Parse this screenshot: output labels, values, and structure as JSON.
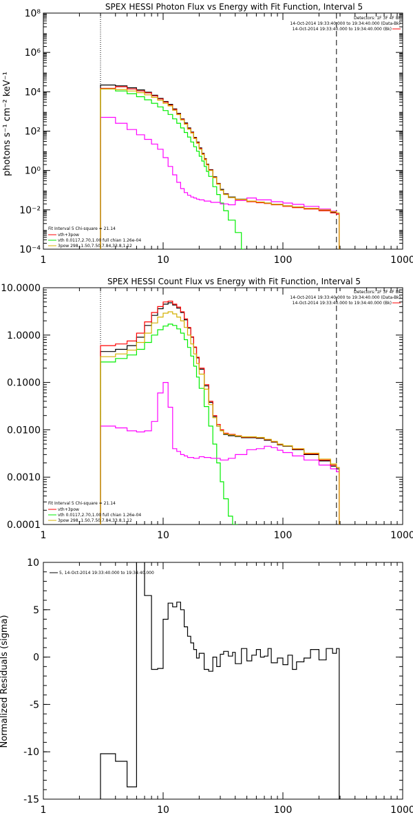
{
  "chart_data": [
    {
      "type": "line",
      "title": "SPEX HESSI Photon Flux vs Energy with Fit Function, Interval 5",
      "ylabel": "photons s⁻¹ cm⁻² keV⁻¹",
      "xlabel": "",
      "xscale": "log",
      "yscale": "log",
      "xlim": [
        1,
        1000
      ],
      "ylim": [
        0.0001,
        100000000
      ],
      "x_ticks": [
        "1",
        "10",
        "100",
        "1000"
      ],
      "y_ticks": [
        "10⁻⁴",
        "10⁻²",
        "10⁰",
        "10²",
        "10⁴",
        "10⁶",
        "10⁸"
      ],
      "ref_lines": {
        "dotted_x": 3.0,
        "dashed_x": 280
      },
      "legend_top": [
        "Detectors: 1F 3F 4F 8F",
        "14-Oct-2014 19:33:40.000 to 19:34:40.000 (Data-Bk)",
        "14-Oct-2014 19:33:40.000 to 19:34:40.000 (Bk)"
      ],
      "legend_bottom": [
        "Fit Interval 5   Chi-square = 21.14",
        "vth+3pow",
        "vth 0.0117,2.70,1.00  full chian 1.26e-04",
        "3pow 298.,1.50,7.50,7.84,33.8,1.12"
      ],
      "series": [
        {
          "name": "vth+3pow",
          "color": "#000000",
          "x": [
            3.0,
            4.0,
            5.0,
            6.0,
            7.0,
            8.0,
            9.0,
            10.0,
            11.0,
            12.0,
            13.0,
            14.0,
            15.0,
            16.0,
            17.0,
            18.0,
            19.0,
            20.0,
            21.0,
            22.0,
            23.0,
            24.0,
            26.0,
            28.0,
            30.0,
            32.0,
            35.0,
            40.0,
            50.0,
            60.0,
            70.0,
            80.0,
            100.0,
            120.0,
            150.0,
            200.0,
            250.0,
            280.0
          ],
          "y": [
            22000,
            20000,
            16000,
            12500,
            9500,
            6700,
            4600,
            3200,
            2300,
            1350,
            800,
            420,
            260,
            145,
            90,
            48,
            28,
            14,
            7.5,
            4.0,
            2.1,
            1.1,
            0.48,
            0.22,
            0.11,
            0.065,
            0.045,
            0.035,
            0.028,
            0.024,
            0.022,
            0.019,
            0.016,
            0.014,
            0.012,
            0.0095,
            0.0075,
            0.0065
          ]
        },
        {
          "name": "vth",
          "color": "#00ee00",
          "x": [
            3.0,
            4.0,
            5.0,
            6.0,
            7.0,
            8.0,
            9.0,
            10.0,
            11.0,
            12.0,
            13.0,
            14.0,
            15.0,
            16.0,
            17.0,
            18.0,
            19.0,
            20.0,
            21.0,
            22.0,
            23.0,
            24.0,
            26.0,
            28.0,
            30.0,
            32.0,
            35.0,
            40.0,
            45.0
          ],
          "y": [
            14000,
            11000,
            8000,
            5600,
            3900,
            2600,
            1700,
            1100,
            700,
            420,
            250,
            145,
            85,
            50,
            28,
            16,
            9.5,
            5.3,
            3.0,
            1.6,
            0.9,
            0.5,
            0.15,
            0.06,
            0.022,
            0.009,
            0.003,
            0.0007,
            0.0001
          ]
        },
        {
          "name": "3pow",
          "color": "#ff00ff",
          "x": [
            3.0,
            4.0,
            5.0,
            6.0,
            7.0,
            8.0,
            9.0,
            10.0,
            11.0,
            12.0,
            13.0,
            14.0,
            15.0,
            16.0,
            17.0,
            18.0,
            19.0,
            20.0,
            22.0,
            25.0,
            30.0,
            35.0,
            40.0,
            50.0,
            60.0,
            80.0,
            100.0,
            120.0,
            150.0,
            200.0,
            250.0,
            280.0
          ],
          "y": [
            500,
            250,
            120,
            65,
            38,
            22,
            12,
            4.5,
            1.6,
            0.6,
            0.25,
            0.12,
            0.075,
            0.055,
            0.045,
            0.04,
            0.035,
            0.032,
            0.028,
            0.024,
            0.02,
            0.018,
            0.03,
            0.04,
            0.032,
            0.026,
            0.022,
            0.019,
            0.015,
            0.011,
            0.0085,
            0.0065
          ]
        },
        {
          "name": "Data-Bk",
          "color": "#ff0000",
          "x": [
            3.0,
            4.0,
            5.0,
            6.0,
            7.0,
            8.0,
            9.0,
            10.0,
            11.0,
            12.0,
            13.0,
            14.0,
            15.0,
            16.0,
            17.0,
            18.0,
            19.0,
            20.0,
            21.0,
            22.0,
            23.0,
            24.0,
            26.0,
            28.0,
            30.0,
            32.0,
            35.0,
            40.0,
            50.0,
            60.0,
            70.0,
            80.0,
            100.0,
            120.0,
            150.0,
            200.0,
            250.0,
            280.0
          ],
          "y": [
            15000,
            18000,
            14000,
            11000,
            8800,
            6200,
            4300,
            3000,
            2100,
            1250,
            740,
            400,
            240,
            135,
            85,
            45,
            26,
            13,
            7.0,
            3.8,
            2.0,
            1.05,
            0.45,
            0.21,
            0.1,
            0.062,
            0.042,
            0.033,
            0.026,
            0.023,
            0.021,
            0.018,
            0.015,
            0.013,
            0.011,
            0.009,
            0.007,
            0.006
          ]
        },
        {
          "name": "Bk",
          "color": "#d4b000",
          "x": [
            3.0,
            4.0,
            5.0,
            6.0,
            7.0,
            8.0,
            9.0,
            10.0,
            11.0,
            12.0,
            13.0,
            14.0,
            15.0,
            16.0,
            17.0,
            18.0,
            19.0,
            20.0,
            21.0,
            22.0,
            23.0,
            24.0,
            26.0,
            28.0,
            30.0,
            32.0,
            35.0,
            40.0,
            50.0,
            60.0,
            70.0,
            80.0,
            100.0,
            120.0,
            150.0,
            200.0,
            250.0,
            280.0
          ],
          "y": [
            14000,
            13000,
            11000,
            9000,
            7000,
            5200,
            3700,
            2600,
            1900,
            1150,
            690,
            370,
            225,
            125,
            80,
            42,
            24,
            12,
            6.5,
            3.5,
            1.9,
            1.0,
            0.43,
            0.2,
            0.098,
            0.06,
            0.042,
            0.034,
            0.028,
            0.025,
            0.022,
            0.019,
            0.016,
            0.014,
            0.012,
            0.01,
            0.008,
            0.007
          ]
        }
      ]
    },
    {
      "type": "line",
      "title": "SPEX HESSI Count Flux vs Energy with Fit Function, Interval 5",
      "ylabel": "",
      "xlabel": "",
      "xscale": "log",
      "yscale": "log",
      "xlim": [
        1,
        1000
      ],
      "ylim": [
        0.0001,
        10
      ],
      "x_ticks": [
        "1",
        "10",
        "100",
        "1000"
      ],
      "y_ticks": [
        "0.0001",
        "0.0010",
        "0.0100",
        "0.1000",
        "1.0000",
        "10.0000"
      ],
      "ref_lines": {
        "dotted_x": 3.0,
        "dashed_x": 280
      },
      "legend_top": [
        "Detectors: 1F 3F 4F 8F",
        "14-Oct-2014 19:33:40.000 to 19:34:40.000 (Data-Bk)",
        "14-Oct-2014 19:33:40.000 to 19:34:40.000 (Bk)"
      ],
      "legend_bottom": [
        "Fit Interval 5   Chi-square = 21.14",
        "vth+3pow",
        "vth 0.0117,2.70,1.00  full chian 1.26e-04",
        "3pow 298.,1.50,7.50,7.84,33.8,1.12"
      ],
      "series": [
        {
          "name": "vth+3pow",
          "color": "#000000",
          "x": [
            3.0,
            4.0,
            5.0,
            6.0,
            7.0,
            8.0,
            9.0,
            10.0,
            11.0,
            12.0,
            13.0,
            14.0,
            15.0,
            16.0,
            17.0,
            18.0,
            19.0,
            20.0,
            22.0,
            24.0,
            26.0,
            28.0,
            30.0,
            32.0,
            35.0,
            40.0,
            45.0,
            50.0,
            60.0,
            70.0,
            80.0,
            90.0,
            100.0,
            120.0,
            150.0,
            200.0,
            250.0,
            280.0
          ],
          "y": [
            0.45,
            0.5,
            0.6,
            0.9,
            1.6,
            2.6,
            3.6,
            4.5,
            4.8,
            4.3,
            3.7,
            3.0,
            2.1,
            1.4,
            0.9,
            0.55,
            0.33,
            0.19,
            0.085,
            0.038,
            0.019,
            0.012,
            0.0095,
            0.008,
            0.0075,
            0.0072,
            0.0068,
            0.0068,
            0.0066,
            0.006,
            0.0055,
            0.0048,
            0.0045,
            0.0038,
            0.003,
            0.0022,
            0.0017,
            0.0015
          ]
        },
        {
          "name": "vth",
          "color": "#00ee00",
          "x": [
            3.0,
            4.0,
            5.0,
            6.0,
            7.0,
            8.0,
            9.0,
            10.0,
            11.0,
            12.0,
            13.0,
            14.0,
            15.0,
            16.0,
            17.0,
            18.0,
            19.0,
            20.0,
            22.0,
            24.0,
            26.0,
            28.0,
            30.0,
            32.0,
            35.0,
            38.0,
            40.0
          ],
          "y": [
            0.27,
            0.32,
            0.38,
            0.5,
            0.7,
            1.0,
            1.3,
            1.55,
            1.7,
            1.6,
            1.35,
            1.1,
            0.8,
            0.55,
            0.36,
            0.22,
            0.13,
            0.075,
            0.031,
            0.012,
            0.005,
            0.002,
            0.0008,
            0.00035,
            0.00015,
            0.0001,
            0.0001
          ]
        },
        {
          "name": "3pow",
          "color": "#ff00ff",
          "x": [
            3.0,
            4.0,
            5.0,
            6.0,
            7.0,
            8.0,
            9.0,
            10.0,
            11.0,
            12.0,
            13.0,
            14.0,
            15.0,
            16.0,
            18.0,
            20.0,
            22.0,
            25.0,
            30.0,
            35.0,
            40.0,
            50.0,
            60.0,
            70.0,
            80.0,
            90.0,
            100.0,
            120.0,
            150.0,
            200.0,
            250.0,
            280.0
          ],
          "y": [
            0.012,
            0.011,
            0.0095,
            0.009,
            0.0095,
            0.015,
            0.06,
            0.1,
            0.03,
            0.004,
            0.0035,
            0.003,
            0.0028,
            0.0026,
            0.0025,
            0.0027,
            0.0026,
            0.0025,
            0.0023,
            0.0025,
            0.003,
            0.0038,
            0.004,
            0.0045,
            0.0042,
            0.0037,
            0.0033,
            0.0028,
            0.0023,
            0.0018,
            0.0015,
            0.0013
          ]
        },
        {
          "name": "Data-Bk",
          "color": "#ff0000",
          "x": [
            3.0,
            4.0,
            5.0,
            6.0,
            7.0,
            8.0,
            9.0,
            10.0,
            11.0,
            12.0,
            13.0,
            14.0,
            15.0,
            16.0,
            17.0,
            18.0,
            19.0,
            20.0,
            22.0,
            24.0,
            26.0,
            28.0,
            30.0,
            32.0,
            35.0,
            40.0,
            45.0,
            50.0,
            60.0,
            70.0,
            80.0,
            90.0,
            100.0,
            120.0,
            150.0,
            200.0,
            250.0,
            280.0
          ],
          "y": [
            0.6,
            0.65,
            0.75,
            1.1,
            1.9,
            3.0,
            4.0,
            5.0,
            5.2,
            4.5,
            3.9,
            3.1,
            2.2,
            1.45,
            0.92,
            0.56,
            0.34,
            0.2,
            0.09,
            0.04,
            0.02,
            0.013,
            0.01,
            0.0085,
            0.008,
            0.0075,
            0.007,
            0.007,
            0.0068,
            0.0062,
            0.0056,
            0.0049,
            0.0046,
            0.0039,
            0.0031,
            0.0023,
            0.0018,
            0.0016
          ]
        },
        {
          "name": "Bk",
          "color": "#d4b000",
          "x": [
            3.0,
            4.0,
            5.0,
            6.0,
            7.0,
            8.0,
            9.0,
            10.0,
            11.0,
            12.0,
            13.0,
            14.0,
            15.0,
            16.0,
            17.0,
            18.0,
            19.0,
            20.0,
            22.0,
            24.0,
            26.0,
            28.0,
            30.0,
            32.0,
            35.0,
            40.0,
            45.0,
            50.0,
            60.0,
            70.0,
            80.0,
            90.0,
            100.0,
            120.0,
            150.0,
            200.0,
            250.0,
            280.0
          ],
          "y": [
            0.35,
            0.4,
            0.48,
            0.7,
            1.1,
            1.8,
            2.4,
            2.9,
            3.1,
            2.8,
            2.4,
            2.0,
            1.45,
            1.0,
            0.65,
            0.4,
            0.25,
            0.15,
            0.072,
            0.034,
            0.018,
            0.012,
            0.0095,
            0.0082,
            0.0078,
            0.0074,
            0.0071,
            0.0071,
            0.0069,
            0.0063,
            0.0057,
            0.005,
            0.0046,
            0.004,
            0.0032,
            0.0024,
            0.0019,
            0.0016
          ]
        }
      ]
    },
    {
      "type": "line",
      "title": "",
      "ylabel": "Normalized Residuals (sigma)",
      "xlabel": "",
      "xscale": "log",
      "yscale": "linear",
      "xlim": [
        1,
        1000
      ],
      "ylim": [
        -15,
        10
      ],
      "x_ticks": [
        "1",
        "10",
        "100",
        "1000"
      ],
      "y_ticks": [
        "-15",
        "-10",
        "-5",
        "0",
        "5",
        "10"
      ],
      "legend_top": [
        "5, 14-Oct-2014 19:33:40.000 to 19:34:40.000"
      ],
      "series": [
        {
          "name": "5, 14-Oct-2014 19:33:40.000 to 19:34:40.000",
          "color": "#000000",
          "step": true,
          "x": [
            3.0,
            4.0,
            5.0,
            6.0,
            7.0,
            8.0,
            9.0,
            10.0,
            11.0,
            12.0,
            13.0,
            14.0,
            15.0,
            16.0,
            17.0,
            18.0,
            19.0,
            20.0,
            22.0,
            24.0,
            26.0,
            28.0,
            30.0,
            32.0,
            35.0,
            38.0,
            40.0,
            45.0,
            50.0,
            55.0,
            60.0,
            65.0,
            70.0,
            75.0,
            80.0,
            90.0,
            100.0,
            110.0,
            120.0,
            130.0,
            150.0,
            170.0,
            200.0,
            230.0,
            260.0,
            280.0
          ],
          "y": [
            -10.2,
            -11.0,
            -13.7,
            10.2,
            6.5,
            -1.3,
            -1.2,
            4.0,
            5.7,
            5.3,
            5.8,
            5.0,
            3.2,
            2.2,
            1.5,
            0.8,
            -0.1,
            0.4,
            -1.3,
            -1.5,
            0.0,
            -1.0,
            0.3,
            0.6,
            0.1,
            0.5,
            -0.7,
            0.9,
            -0.4,
            0.2,
            0.8,
            0.0,
            0.1,
            0.9,
            -0.6,
            -0.1,
            -0.8,
            0.2,
            -1.3,
            -0.5,
            -0.1,
            0.8,
            -0.3,
            0.9,
            0.4,
            0.9
          ]
        }
      ]
    }
  ]
}
